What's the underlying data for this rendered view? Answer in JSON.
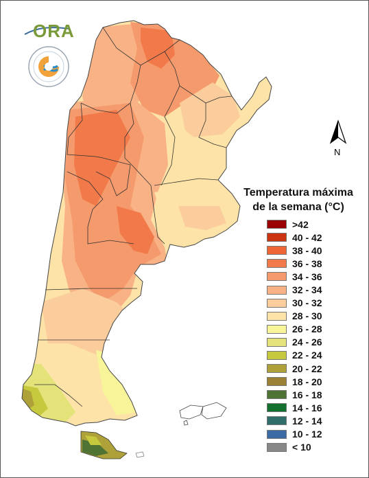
{
  "legend": {
    "title_line1": "Temperatura máxima",
    "title_line2": "de la semana (°C)",
    "items": [
      {
        "label": ">42",
        "color": "#9b0000"
      },
      {
        "label": "40 - 42",
        "color": "#cc3311"
      },
      {
        "label": "38 - 40",
        "color": "#ee6633"
      },
      {
        "label": "36 - 38",
        "color": "#f27a4a"
      },
      {
        "label": "34 - 36",
        "color": "#f59a6c"
      },
      {
        "label": "32 - 34",
        "color": "#f8b285"
      },
      {
        "label": "30 - 32",
        "color": "#fbcd9c"
      },
      {
        "label": "28 - 30",
        "color": "#fde3a7"
      },
      {
        "label": "26 - 28",
        "color": "#f8f49a"
      },
      {
        "label": "24 - 26",
        "color": "#e3e37a"
      },
      {
        "label": "22 - 24",
        "color": "#c6c93d"
      },
      {
        "label": "20 - 22",
        "color": "#aea13a"
      },
      {
        "label": "18 - 20",
        "color": "#9a8133"
      },
      {
        "label": "16 - 18",
        "color": "#4f7333"
      },
      {
        "label": "14 - 16",
        "color": "#14702f"
      },
      {
        "label": "12 - 14",
        "color": "#2f6e6a"
      },
      {
        "label": "10 - 12",
        "color": "#3c6aa5"
      },
      {
        "label": "< 10",
        "color": "#888888"
      }
    ]
  },
  "logos": {
    "ora_text": "ORA",
    "smn_ring_text": "SERVICIO METEOROLÓGICO NACIONAL",
    "smn_country": "ARGENTINA"
  },
  "north_arrow": {
    "label": "N"
  }
}
